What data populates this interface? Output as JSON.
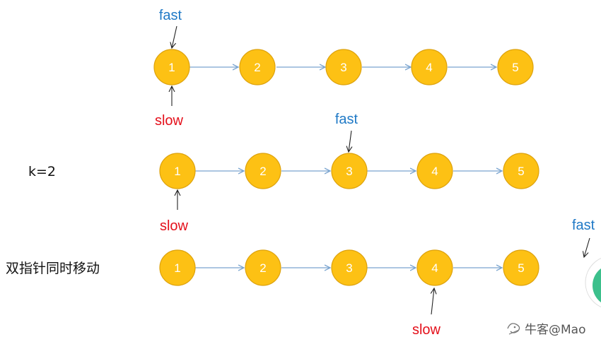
{
  "rows": [
    {
      "label": "",
      "nodes": [
        "1",
        "2",
        "3",
        "4",
        "5"
      ],
      "fast_label": "fast",
      "slow_label": "slow"
    },
    {
      "label": "k=2",
      "nodes": [
        "1",
        "2",
        "3",
        "4",
        "5"
      ],
      "fast_label": "fast",
      "slow_label": "slow"
    },
    {
      "label": "双指针同时移动",
      "nodes": [
        "1",
        "2",
        "3",
        "4",
        "5"
      ],
      "fast_label": "fast",
      "slow_label": "slow"
    }
  ],
  "watermark": "牛客@Mao",
  "colors": {
    "node_fill": "#fdc114",
    "link": "#7aa4cf",
    "fast": "#1f79c6",
    "slow": "#e4101b",
    "teal_logo": "#3cc08c"
  }
}
